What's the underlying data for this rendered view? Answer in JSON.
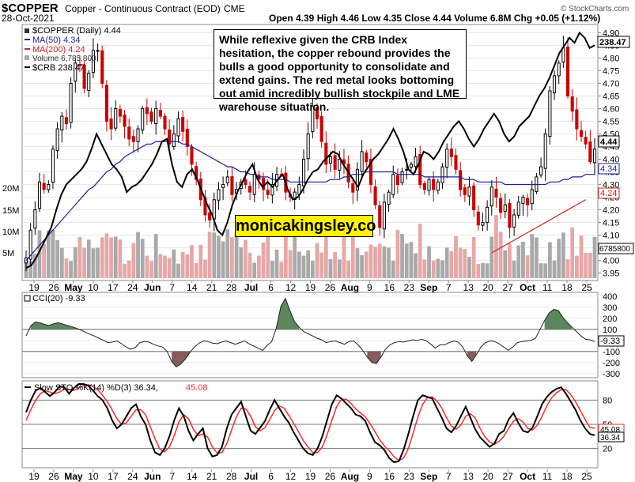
{
  "header": {
    "symbol": "$COPPER",
    "description": "Copper - Continuous Contract (EOD)",
    "exchange": "CME",
    "date": "28-Oct-2021",
    "copyright": "© StockCharts.com",
    "ohlc": "Open 4.39  High 4.46  Low 4.35  Close 4.44  Volume 6.8M  Chg +0.05 (+1.12%)"
  },
  "legend": {
    "price": "$COPPER (Daily) 4.44",
    "ma50": "MA(50) 4.34",
    "ma200": "MA(200) 4.24",
    "volume": "Volume 6,785,800",
    "crb": "$CRB 238.47"
  },
  "annotation": "While reflexive given the CRB Index hesitation, the copper rebound provides the bulls a good opportunity to consolidate and extend gains. The red metal looks bottoming out amid incredibly bullish stockpile and LME warehouse situation.",
  "watermark": "monicakingsley.co",
  "panels": {
    "cci_label": "CCI(20) -9.33",
    "sto_label_prefix": "Slow STO %K(14) %D(3) 36.34,",
    "sto_label_d": "45.08"
  },
  "tags": {
    "crb": "238.47",
    "close": "4.44",
    "ma50": "4.34",
    "ma200": "4.24",
    "volume": "6785800",
    "cci": "-9.33",
    "sto_k": "36.34",
    "sto_d": "45.08"
  },
  "colors": {
    "up": "#000000",
    "down": "#cc0000",
    "ma50": "#1f1f99",
    "ma200": "#cc2222",
    "vol_up": "#a9a9a9",
    "vol_down": "#e7a7a7",
    "cci_fill_pos": "#4a7a4a",
    "cci_fill_neg": "#7a4a4a",
    "sto_d": "#ff2a2a",
    "grid": "#cccccc"
  },
  "chart_data": [
    {
      "type": "candlestick",
      "title": "$COPPER Copper - Continuous Contract (EOD)",
      "x_ticks": [
        "19",
        "26",
        "May",
        "10",
        "17",
        "24",
        "Jun",
        "7",
        "14",
        "21",
        "28",
        "Jul",
        "6",
        "12",
        "19",
        "26",
        "Aug",
        "9",
        "16",
        "23",
        "Sep",
        "7",
        "13",
        "20",
        "27",
        "Oct",
        "11",
        "18",
        "25"
      ],
      "y_ticks": [
        3.95,
        4.0,
        4.05,
        4.1,
        4.15,
        4.2,
        4.25,
        4.3,
        4.35,
        4.4,
        4.45,
        4.5,
        4.55,
        4.6,
        4.65,
        4.7,
        4.75,
        4.8,
        4.85,
        4.9
      ],
      "ylim": [
        3.93,
        4.92
      ],
      "volume_ticks": [
        "5M",
        "10M",
        "15M",
        "20M"
      ],
      "close": [
        4.01,
        4.12,
        4.2,
        4.31,
        4.28,
        4.3,
        4.44,
        4.52,
        4.57,
        4.54,
        4.7,
        4.78,
        4.77,
        4.68,
        4.74,
        4.83,
        4.83,
        4.7,
        4.55,
        4.52,
        4.6,
        4.57,
        4.53,
        4.48,
        4.47,
        4.52,
        4.6,
        4.58,
        4.55,
        4.6,
        4.57,
        4.52,
        4.46,
        4.5,
        4.56,
        4.51,
        4.45,
        4.38,
        4.32,
        4.24,
        4.18,
        4.16,
        4.24,
        4.28,
        4.3,
        4.33,
        4.26,
        4.28,
        4.31,
        4.3,
        4.27,
        4.34,
        4.32,
        4.28,
        4.26,
        4.3,
        4.34,
        4.34,
        4.27,
        4.25,
        4.27,
        4.3,
        4.4,
        4.5,
        4.61,
        4.56,
        4.47,
        4.38,
        4.41,
        4.36,
        4.4,
        4.38,
        4.31,
        4.27,
        4.36,
        4.43,
        4.39,
        4.3,
        4.22,
        4.13,
        4.23,
        4.27,
        4.34,
        4.3,
        4.35,
        4.36,
        4.38,
        4.41,
        4.3,
        4.28,
        4.32,
        4.28,
        4.31,
        4.37,
        4.44,
        4.41,
        4.36,
        4.28,
        4.26,
        4.29,
        4.2,
        4.14,
        4.15,
        4.21,
        4.29,
        4.25,
        4.19,
        4.22,
        4.13,
        4.18,
        4.23,
        4.25,
        4.22,
        4.28,
        4.33,
        4.37,
        4.5,
        4.67,
        4.73,
        4.78,
        4.84,
        4.65,
        4.59,
        4.52,
        4.49,
        4.46,
        4.39,
        4.44
      ],
      "ma50": [
        4.0,
        4.02,
        4.04,
        4.06,
        4.08,
        4.1,
        4.12,
        4.14,
        4.16,
        4.18,
        4.2,
        4.22,
        4.24,
        4.26,
        4.28,
        4.29,
        4.31,
        4.33,
        4.35,
        4.36,
        4.38,
        4.39,
        4.41,
        4.42,
        4.43,
        4.44,
        4.45,
        4.46,
        4.46,
        4.47,
        4.47,
        4.47,
        4.47,
        4.47,
        4.47,
        4.46,
        4.46,
        4.45,
        4.44,
        4.43,
        4.42,
        4.41,
        4.4,
        4.39,
        4.38,
        4.37,
        4.37,
        4.36,
        4.35,
        4.35,
        4.34,
        4.34,
        4.33,
        4.33,
        4.33,
        4.32,
        4.32,
        4.32,
        4.32,
        4.31,
        4.31,
        4.31,
        4.31,
        4.31,
        4.31,
        4.31,
        4.31,
        4.31,
        4.32,
        4.32,
        4.32,
        4.33,
        4.33,
        4.34,
        4.34,
        4.34,
        4.35,
        4.35,
        4.35,
        4.35,
        4.35,
        4.35,
        4.35,
        4.34,
        4.34,
        4.34,
        4.34,
        4.34,
        4.34,
        4.33,
        4.33,
        4.33,
        4.33,
        4.33,
        4.33,
        4.33,
        4.33,
        4.33,
        4.32,
        4.32,
        4.32,
        4.31,
        4.31,
        4.31,
        4.31,
        4.31,
        4.31,
        4.3,
        4.3,
        4.3,
        4.3,
        4.3,
        4.3,
        4.3,
        4.3,
        4.3,
        4.3,
        4.31,
        4.31,
        4.31,
        4.32,
        4.32,
        4.33,
        4.33,
        4.33,
        4.34,
        4.34,
        4.34
      ],
      "ma200": [
        4.03,
        4.04,
        4.05,
        4.06,
        4.07,
        4.08,
        4.09,
        4.1,
        4.11,
        4.12,
        4.13,
        4.14,
        4.15,
        4.16,
        4.17,
        4.18,
        4.19,
        4.2,
        4.21,
        4.22,
        4.23,
        4.24
      ],
      "ma200_start_index": 104,
      "crb": [
        3.97,
        3.98,
        4.01,
        4.05,
        4.09,
        4.13,
        4.2,
        4.26,
        4.3,
        4.32,
        4.34,
        4.36,
        4.39,
        4.44,
        4.5,
        4.46,
        4.42,
        4.38,
        4.36,
        4.33,
        4.27,
        4.29,
        4.3,
        4.32,
        4.35,
        4.38,
        4.42,
        4.47,
        4.48,
        4.38,
        4.31,
        4.29,
        4.34,
        4.36,
        4.32,
        4.27,
        4.22,
        4.18,
        4.12,
        4.1,
        4.15,
        4.22,
        4.27,
        4.31,
        4.35,
        4.38,
        4.32,
        4.29,
        4.31,
        4.29,
        4.32,
        4.34,
        4.28,
        4.24,
        4.25,
        4.28,
        4.32,
        4.35,
        4.36,
        4.39,
        4.41,
        4.43,
        4.42,
        4.38,
        4.35,
        4.32,
        4.29,
        4.34,
        4.37,
        4.4,
        4.42,
        4.45,
        4.48,
        4.52,
        4.48,
        4.43,
        4.36,
        4.34,
        4.38,
        4.43,
        4.42,
        4.4,
        4.43,
        4.47,
        4.5,
        4.53,
        4.55,
        4.52,
        4.48,
        4.45,
        4.48,
        4.52,
        4.55,
        4.58,
        4.55,
        4.5,
        4.47,
        4.49,
        4.53,
        4.55,
        4.57,
        4.61,
        4.65,
        4.68,
        4.72,
        4.77,
        4.82,
        4.85,
        4.88,
        4.86,
        4.9,
        4.88,
        4.84,
        4.85
      ]
    },
    {
      "type": "line",
      "title": "CCI(20) -9.33",
      "ylim": [
        -330,
        420
      ],
      "y_ticks": [
        -300,
        -200,
        -100,
        0,
        100,
        200,
        300,
        400
      ],
      "values": [
        40,
        130,
        165,
        160,
        145,
        135,
        150,
        160,
        150,
        135,
        125,
        110,
        95,
        75,
        55,
        40,
        20,
        0,
        -20,
        -15,
        -5,
        -30,
        -60,
        -80,
        -65,
        -20,
        -10,
        -15,
        -35,
        -50,
        -60,
        -100,
        -190,
        -240,
        -215,
        -170,
        -110,
        -60,
        -25,
        -5,
        -10,
        -25,
        -30,
        -15,
        -5,
        -20,
        -35,
        -20,
        -5,
        -30,
        -50,
        -70,
        -90,
        -45,
        -10,
        110,
        305,
        380,
        270,
        170,
        120,
        80,
        60,
        40,
        20,
        5,
        -20,
        -10,
        -5,
        -20,
        -35,
        -10,
        -5,
        -40,
        -90,
        -150,
        -200,
        -210,
        -150,
        -80,
        -40,
        -20,
        -10,
        -15,
        -5,
        5,
        0,
        10,
        -5,
        -35,
        -70,
        -40,
        -40,
        -20,
        -5,
        -15,
        -60,
        -140,
        -190,
        -130,
        -60,
        -20,
        -5,
        -10,
        -30,
        -60,
        -90,
        -60,
        -20,
        -10,
        -5,
        0,
        20,
        100,
        180,
        250,
        280,
        270,
        210,
        160,
        120,
        80,
        40,
        10,
        5,
        -9.33
      ]
    },
    {
      "type": "line",
      "title": "Slow STO %K(14) %D(3)",
      "ylim": [
        0,
        100
      ],
      "y_ticks": [
        20,
        50,
        80
      ],
      "series": [
        {
          "name": "%K",
          "values": [
            65,
            80,
            92,
            95,
            90,
            85,
            90,
            97,
            96,
            88,
            95,
            100,
            100,
            98,
            92,
            85,
            80,
            70,
            55,
            45,
            50,
            60,
            70,
            75,
            60,
            50,
            30,
            15,
            12,
            20,
            35,
            55,
            70,
            60,
            42,
            30,
            38,
            45,
            20,
            10,
            12,
            22,
            45,
            62,
            70,
            78,
            60,
            42,
            38,
            46,
            54,
            68,
            80,
            70,
            60,
            52,
            40,
            30,
            20,
            14,
            12,
            20,
            35,
            55,
            75,
            86,
            82,
            76,
            70,
            62,
            60,
            54,
            40,
            28,
            24,
            18,
            8,
            3,
            4,
            18,
            38,
            60,
            80,
            86,
            84,
            82,
            70,
            58,
            45,
            40,
            48,
            60,
            72,
            58,
            44,
            34,
            28,
            22,
            26,
            38,
            42,
            56,
            64,
            52,
            42,
            40,
            46,
            60,
            75,
            84,
            90,
            94,
            96,
            88,
            78,
            68,
            55,
            45,
            38,
            36.34
          ]
        },
        {
          "name": "%D",
          "values": [
            55,
            68,
            80,
            88,
            92,
            90,
            88,
            90,
            94,
            93,
            92,
            95,
            98,
            99,
            97,
            93,
            86,
            78,
            68,
            57,
            50,
            52,
            60,
            68,
            68,
            62,
            47,
            32,
            19,
            16,
            22,
            36,
            53,
            62,
            57,
            44,
            36,
            38,
            34,
            22,
            14,
            15,
            26,
            43,
            59,
            70,
            69,
            60,
            47,
            42,
            46,
            56,
            67,
            73,
            70,
            61,
            51,
            41,
            30,
            22,
            15,
            15,
            22,
            37,
            55,
            72,
            81,
            81,
            76,
            69,
            64,
            59,
            51,
            41,
            31,
            23,
            17,
            10,
            5,
            8,
            20,
            39,
            59,
            75,
            83,
            84,
            79,
            70,
            58,
            48,
            44,
            49,
            60,
            63,
            58,
            45,
            35,
            28,
            25,
            29,
            35,
            45,
            54,
            57,
            53,
            45,
            43,
            49,
            60,
            73,
            83,
            89,
            93,
            93,
            87,
            78,
            67,
            56,
            46,
            45.08
          ]
        }
      ]
    }
  ]
}
